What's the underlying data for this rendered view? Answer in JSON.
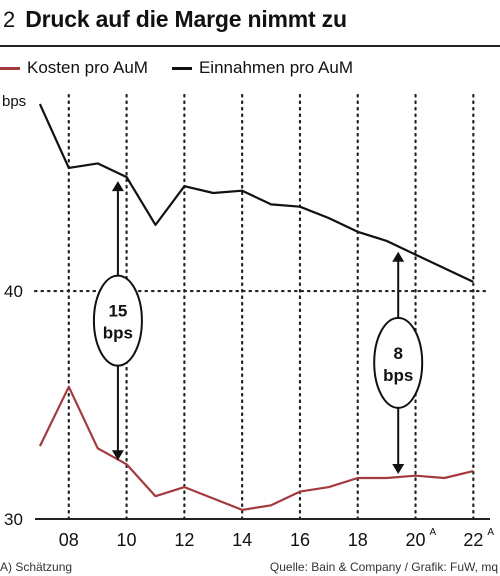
{
  "figure_number": "2",
  "title": "Druck auf die Marge nimmt zu",
  "footnote": "A) Schätzung",
  "source": "Quelle: Bain & Company / Grafik: FuW, mq",
  "colors": {
    "kosten": "#a33a3e",
    "einnahmen": "#111111",
    "grid": "#222222"
  },
  "chart_data": {
    "type": "line",
    "ylabel": "bps",
    "ylim": [
      30,
      48.6
    ],
    "xlim": [
      2006.9,
      2022.3
    ],
    "yticks": [
      {
        "value": 30,
        "label": "30"
      },
      {
        "value": 40,
        "label": "40"
      }
    ],
    "xticks": [
      {
        "value": 2008,
        "label": "08",
        "sup": ""
      },
      {
        "value": 2010,
        "label": "10",
        "sup": ""
      },
      {
        "value": 2012,
        "label": "12",
        "sup": ""
      },
      {
        "value": 2014,
        "label": "14",
        "sup": ""
      },
      {
        "value": 2016,
        "label": "16",
        "sup": ""
      },
      {
        "value": 2018,
        "label": "18",
        "sup": ""
      },
      {
        "value": 2020,
        "label": "20",
        "sup": "A"
      },
      {
        "value": 2022,
        "label": "22",
        "sup": "A"
      }
    ],
    "series": [
      {
        "name": "Kosten pro AuM",
        "color": "#a33a3e",
        "x": [
          2007,
          2008,
          2009,
          2010,
          2011,
          2012,
          2013,
          2014,
          2015,
          2016,
          2017,
          2018,
          2019,
          2020,
          2021,
          2022
        ],
        "values": [
          33.2,
          35.8,
          33.1,
          32.4,
          31.0,
          31.4,
          30.9,
          30.4,
          30.6,
          31.2,
          31.4,
          31.8,
          31.8,
          31.9,
          31.8,
          32.1
        ]
      },
      {
        "name": "Einnahmen pro AuM",
        "color": "#111111",
        "x": [
          2007,
          2008,
          2009,
          2010,
          2011,
          2012,
          2013,
          2014,
          2015,
          2016,
          2017,
          2018,
          2019,
          2020,
          2021,
          2022
        ],
        "values": [
          48.2,
          45.4,
          45.6,
          45.0,
          42.9,
          44.6,
          44.3,
          44.4,
          43.8,
          43.7,
          43.2,
          42.6,
          42.2,
          41.6,
          41.0,
          40.4
        ]
      }
    ],
    "annotations": [
      {
        "line1": "15",
        "line2": "bps",
        "x": 2009.7,
        "y_top": 45.0,
        "y_bottom": 32.4
      },
      {
        "line1": "8",
        "line2": "bps",
        "x": 2019.4,
        "y_top": 41.9,
        "y_bottom": 31.8
      }
    ]
  }
}
